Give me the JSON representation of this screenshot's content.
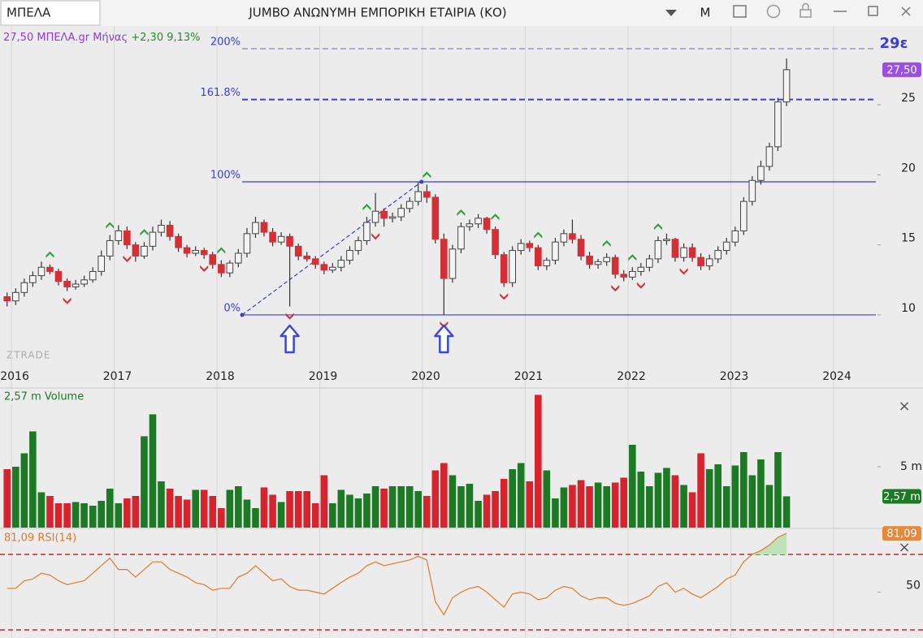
{
  "toolbar": {
    "symbol": "ΜΠΕΛΑ",
    "title": "JUMBO ΑΝΩΝΥΜΗ ΕΜΠΟΡΙΚΗ ΕΤΑΙΡΙΑ (ΚΟ)",
    "mode": "M"
  },
  "chart_data": [
    {
      "type": "candlestick",
      "info": "27,50 ΜΠΕΛΑ.gr Μήνας",
      "change": "+2,30 9,13%",
      "watermark": "ZTRADE",
      "up_color": "#f4f4f4",
      "down_color": "#d42f36",
      "signal_up_color": "#2f9e40",
      "signal_down_color": "#d42f36",
      "x": [
        2015.958,
        2016.042,
        2016.125,
        2016.208,
        2016.292,
        2016.375,
        2016.458,
        2016.542,
        2016.625,
        2016.708,
        2016.792,
        2016.875,
        2016.958,
        2017.042,
        2017.125,
        2017.208,
        2017.292,
        2017.375,
        2017.458,
        2017.542,
        2017.625,
        2017.708,
        2017.792,
        2017.875,
        2017.958,
        2018.042,
        2018.125,
        2018.208,
        2018.292,
        2018.375,
        2018.458,
        2018.542,
        2018.625,
        2018.708,
        2018.792,
        2018.875,
        2018.958,
        2019.042,
        2019.125,
        2019.208,
        2019.292,
        2019.375,
        2019.458,
        2019.542,
        2019.625,
        2019.708,
        2019.792,
        2019.875,
        2019.958,
        2020.042,
        2020.125,
        2020.208,
        2020.292,
        2020.375,
        2020.458,
        2020.542,
        2020.625,
        2020.708,
        2020.792,
        2020.875,
        2020.958,
        2021.042,
        2021.125,
        2021.208,
        2021.292,
        2021.375,
        2021.458,
        2021.542,
        2021.625,
        2021.708,
        2021.792,
        2021.875,
        2021.958,
        2022.042,
        2022.125,
        2022.208,
        2022.292,
        2022.375,
        2022.458,
        2022.542,
        2022.625,
        2022.708,
        2022.792,
        2022.875,
        2022.958,
        2023.042,
        2023.125,
        2023.208,
        2023.292,
        2023.375,
        2023.458,
        2023.542
      ],
      "open": [
        11.3,
        11.0,
        11.6,
        12.3,
        12.8,
        13.4,
        13.1,
        12.4,
        12.0,
        12.2,
        12.5,
        13.1,
        14.2,
        15.3,
        16.0,
        15.0,
        14.2,
        14.9,
        15.9,
        16.4,
        15.6,
        14.8,
        14.4,
        14.6,
        14.3,
        13.6,
        13.0,
        13.7,
        14.4,
        15.8,
        16.6,
        15.9,
        15.2,
        15.6,
        14.9,
        14.2,
        14.0,
        13.6,
        13.2,
        13.4,
        13.9,
        14.6,
        15.3,
        16.6,
        17.4,
        16.9,
        17.0,
        17.6,
        18.1,
        18.8,
        18.4,
        15.4,
        12.6,
        14.7,
        16.3,
        16.5,
        16.9,
        16.1,
        14.3,
        12.3,
        14.6,
        15.1,
        14.8,
        13.5,
        13.9,
        15.2,
        15.8,
        15.4,
        14.2,
        13.6,
        13.8,
        14.1,
        12.9,
        12.7,
        13.1,
        13.4,
        14.0,
        15.3,
        15.4,
        14.1,
        14.8,
        14.1,
        13.5,
        14.0,
        14.6,
        15.2,
        16.0,
        18.1,
        19.6,
        20.6,
        22.0,
        25.2
      ],
      "high": [
        11.6,
        11.9,
        12.6,
        13.1,
        13.8,
        13.6,
        13.3,
        12.6,
        12.5,
        12.8,
        13.4,
        14.6,
        15.7,
        16.4,
        16.3,
        15.2,
        15.2,
        16.3,
        16.8,
        16.7,
        15.8,
        15.0,
        14.9,
        14.8,
        14.5,
        13.9,
        13.9,
        14.7,
        16.2,
        17.0,
        16.8,
        16.2,
        15.9,
        15.8,
        15.1,
        14.5,
        14.2,
        13.8,
        13.7,
        14.2,
        14.9,
        15.6,
        17.0,
        18.7,
        17.6,
        17.3,
        17.9,
        18.4,
        19.5,
        19.3,
        18.6,
        15.8,
        15.0,
        16.6,
        16.8,
        17.2,
        17.0,
        16.3,
        14.5,
        14.9,
        15.4,
        15.3,
        15.0,
        14.1,
        15.5,
        16.1,
        16.8,
        15.7,
        14.5,
        14.0,
        14.4,
        14.3,
        13.2,
        13.4,
        13.7,
        14.3,
        15.6,
        15.8,
        15.5,
        15.1,
        15.1,
        14.4,
        14.3,
        14.9,
        15.5,
        16.3,
        18.4,
        19.9,
        21.0,
        22.3,
        25.5,
        28.3
      ],
      "low": [
        10.6,
        10.7,
        11.3,
        12.0,
        12.5,
        12.9,
        12.1,
        11.7,
        11.8,
        12.0,
        12.3,
        12.8,
        13.9,
        15.0,
        14.7,
        13.8,
        14.0,
        14.6,
        15.6,
        15.3,
        14.5,
        14.1,
        14.2,
        14.0,
        13.3,
        12.7,
        12.7,
        13.4,
        14.1,
        15.5,
        15.6,
        14.9,
        15.0,
        10.6,
        13.9,
        13.8,
        13.3,
        12.9,
        13.0,
        13.1,
        13.6,
        14.3,
        15.0,
        16.3,
        16.3,
        16.6,
        16.7,
        17.3,
        17.8,
        18.0,
        15.1,
        10.0,
        12.3,
        14.4,
        16.0,
        16.2,
        15.8,
        14.0,
        12.0,
        12.0,
        14.3,
        14.5,
        13.2,
        13.2,
        13.6,
        14.9,
        15.1,
        13.9,
        13.3,
        13.3,
        13.5,
        12.6,
        12.4,
        12.5,
        12.8,
        13.1,
        13.7,
        15.0,
        13.8,
        13.8,
        13.8,
        13.2,
        13.2,
        13.7,
        14.3,
        14.9,
        15.7,
        17.8,
        19.3,
        20.3,
        21.7,
        24.9
      ],
      "close": [
        11.0,
        11.6,
        12.3,
        12.8,
        13.4,
        13.1,
        12.4,
        12.0,
        12.2,
        12.5,
        13.1,
        14.2,
        15.3,
        16.0,
        15.0,
        14.2,
        14.9,
        15.9,
        16.4,
        15.6,
        14.8,
        14.4,
        14.6,
        14.3,
        13.6,
        13.0,
        13.7,
        14.4,
        15.8,
        16.6,
        15.9,
        15.2,
        15.6,
        14.9,
        14.2,
        14.0,
        13.6,
        13.2,
        13.4,
        13.9,
        14.6,
        15.3,
        16.6,
        17.4,
        16.9,
        17.0,
        17.6,
        18.1,
        18.8,
        18.4,
        15.4,
        12.6,
        14.7,
        16.3,
        16.5,
        16.9,
        16.1,
        14.3,
        12.3,
        14.6,
        15.1,
        14.8,
        13.5,
        13.9,
        15.2,
        15.8,
        15.4,
        14.2,
        13.6,
        13.8,
        14.1,
        12.9,
        12.7,
        13.1,
        13.4,
        14.0,
        15.3,
        15.4,
        14.1,
        14.8,
        14.1,
        13.5,
        14.0,
        14.6,
        15.2,
        16.0,
        18.1,
        19.6,
        20.6,
        22.0,
        25.2,
        27.5
      ],
      "xlim": [
        2015.889,
        2024.411
      ],
      "xticks": [
        2016,
        2017,
        2018,
        2019,
        2020,
        2021,
        2022,
        2023,
        2024
      ],
      "ylim": [
        6.81,
        29.87
      ],
      "yticks": [
        10,
        15,
        20,
        25
      ],
      "fib_color": "#3a3fcf",
      "fib_levels": [
        {
          "value": 29,
          "label": "200%",
          "style": "dashed"
        },
        {
          "value": 25.37,
          "label": "161.8%",
          "style": "dashed"
        },
        {
          "value": 19.5,
          "label": "100%",
          "style": "solid"
        },
        {
          "value": 10,
          "label": "0%",
          "style": "solid"
        }
      ],
      "trendline": {
        "x": [
          2018.245,
          2019.99
        ],
        "y": [
          10,
          19.5
        ]
      },
      "target_label": "29ε",
      "last_label": "27,50",
      "last_label_color": "#9b4fe0",
      "signals": {
        "up": [
          2016.375,
          2016.958,
          2017.292,
          2018.042,
          2019.458,
          2020.042,
          2020.375,
          2020.708,
          2021.125,
          2021.792,
          2022.042,
          2022.292
        ],
        "down": [
          2016.542,
          2017.125,
          2017.875,
          2018.708,
          2019.542,
          2020.208,
          2020.792,
          2021.875,
          2022.125,
          2022.542
        ]
      },
      "arrows": [
        2018.708,
        2020.208
      ]
    },
    {
      "type": "bar",
      "title": "2,57 m Volume",
      "up_color": "#1d7a24",
      "down_color": "#d6242e",
      "values": [
        4.8,
        5.0,
        6.1,
        7.9,
        2.9,
        2.6,
        2.0,
        2.0,
        2.1,
        2.0,
        1.8,
        2.2,
        3.2,
        2.0,
        2.4,
        2.6,
        7.5,
        9.3,
        3.8,
        3.2,
        2.6,
        2.3,
        3.1,
        3.1,
        2.6,
        1.6,
        3.1,
        3.4,
        2.3,
        1.6,
        3.3,
        2.7,
        2.1,
        3.0,
        3.0,
        3.0,
        2.0,
        4.3,
        2.0,
        3.1,
        2.7,
        2.4,
        2.8,
        3.4,
        3.2,
        3.4,
        3.4,
        3.4,
        3.0,
        2.6,
        4.7,
        5.3,
        4.3,
        3.4,
        3.6,
        2.2,
        2.7,
        3.0,
        4.0,
        4.8,
        5.3,
        3.8,
        10.9,
        4.7,
        2.4,
        3.3,
        3.5,
        3.9,
        3.4,
        3.7,
        3.4,
        3.7,
        4.1,
        6.8,
        4.6,
        3.4,
        4.5,
        4.9,
        4.3,
        3.5,
        2.9,
        6.1,
        4.8,
        5.2,
        3.4,
        5.1,
        6.2,
        4.3,
        5.6,
        3.5,
        6.2,
        2.57
      ],
      "ylim": [
        0,
        11.33
      ],
      "yticks": [
        {
          "value": 5,
          "label": "5 m"
        }
      ],
      "last_label": "2,57 m",
      "close_label": "×"
    },
    {
      "type": "line",
      "title": "81,09 RSI(14)",
      "color": "#e07a2a",
      "fill_color": "#bfe3b8",
      "level_color": "#c8232b",
      "values": [
        52,
        52,
        56,
        57,
        60,
        59,
        56,
        54,
        55,
        56,
        60,
        64,
        68,
        62,
        62,
        58,
        62,
        66,
        66,
        62,
        60,
        58,
        55,
        54,
        51,
        52,
        52,
        58,
        60,
        64,
        60,
        56,
        57,
        53,
        51,
        51,
        50,
        49,
        52,
        55,
        58,
        60,
        64,
        66,
        64,
        65,
        66,
        67,
        69,
        67,
        45,
        38,
        47,
        50,
        52,
        53,
        50,
        46,
        42,
        49,
        50,
        49,
        46,
        47,
        51,
        53,
        52,
        48,
        46,
        47,
        47,
        44,
        43,
        44,
        46,
        48,
        53,
        55,
        50,
        52,
        49,
        47,
        50,
        53,
        57,
        59,
        66,
        70,
        72,
        75,
        79,
        81.09
      ],
      "ylim": [
        25.7,
        83.3
      ],
      "yticks": [
        50
      ],
      "levels": [
        70,
        30
      ],
      "last_label": "81,09",
      "close_label": "×"
    }
  ]
}
